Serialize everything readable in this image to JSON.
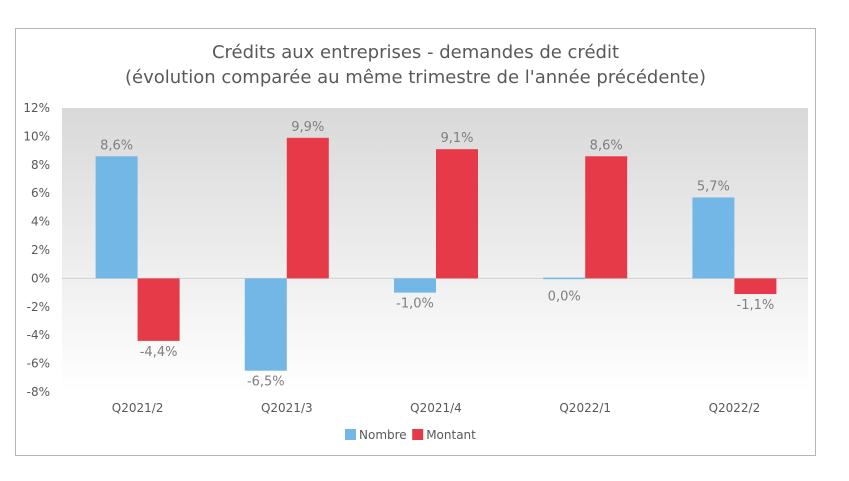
{
  "chart_data": {
    "type": "bar",
    "title": "Crédits aux entreprises - demandes de crédit",
    "subtitle": "(évolution comparée au même trimestre de l'année précédente)",
    "categories": [
      "Q2021/2",
      "Q2021/3",
      "Q2021/4",
      "Q2022/1",
      "Q2022/2"
    ],
    "series": [
      {
        "name": "Nombre",
        "color": "#72b7e6",
        "values": [
          8.6,
          -6.5,
          -1.0,
          0.0,
          5.7
        ],
        "labels": [
          "8,6%",
          "-6,5%",
          "-1,0%",
          "0,0%",
          "5,7%"
        ]
      },
      {
        "name": "Montant",
        "color": "#e63a48",
        "values": [
          -4.4,
          9.9,
          9.1,
          8.6,
          -1.1
        ],
        "labels": [
          "-4,4%",
          "9,9%",
          "9,1%",
          "8,6%",
          "-1,1%"
        ]
      }
    ],
    "ylim": [
      -8,
      12
    ],
    "yticks": [
      12,
      10,
      8,
      6,
      4,
      2,
      0,
      -2,
      -4,
      -6,
      -8
    ],
    "ytick_labels": [
      "12%",
      "10%",
      "8%",
      "6%",
      "4%",
      "2%",
      "0%",
      "-2%",
      "-4%",
      "-6%",
      "-8%"
    ],
    "legend_position": "bottom",
    "grid": false
  }
}
